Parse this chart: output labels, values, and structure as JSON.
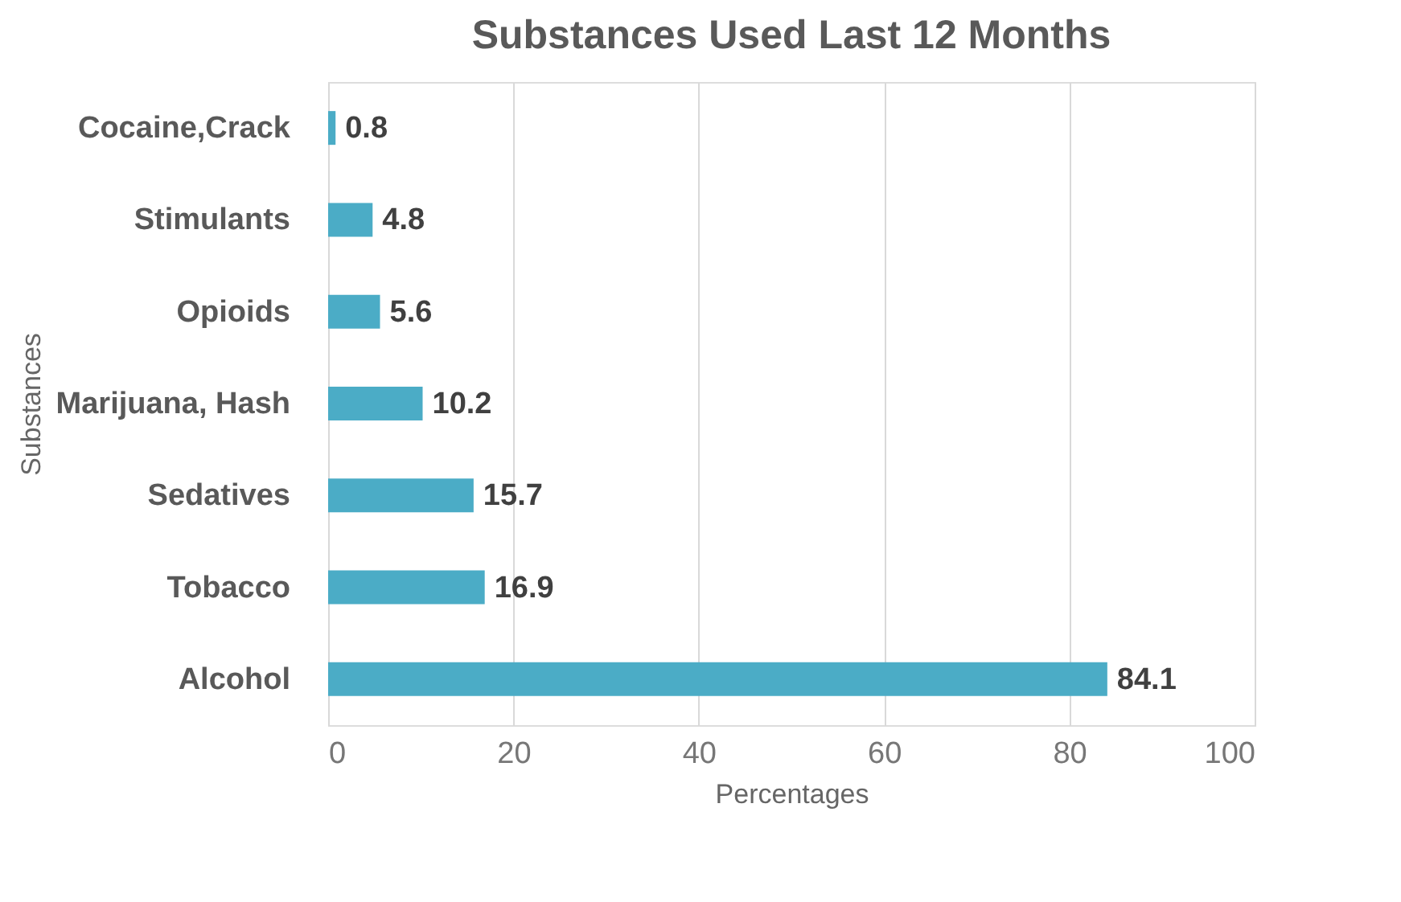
{
  "chart_data": {
    "type": "bar",
    "orientation": "horizontal",
    "title": "Substances Used Last 12 Months",
    "xlabel": "Percentages",
    "ylabel": "Substances",
    "categories": [
      "Cocaine,Crack",
      "Stimulants",
      "Opioids",
      "Marijuana, Hash",
      "Sedatives",
      "Tobacco",
      "Alcohol"
    ],
    "values": [
      0.8,
      4.8,
      5.6,
      10.2,
      15.7,
      16.9,
      84.1
    ],
    "color": "#4bacc6",
    "xlim": [
      0,
      100
    ],
    "xticks": [
      0,
      20,
      40,
      60,
      80,
      100
    ],
    "grid": "x",
    "data_labels": true
  }
}
